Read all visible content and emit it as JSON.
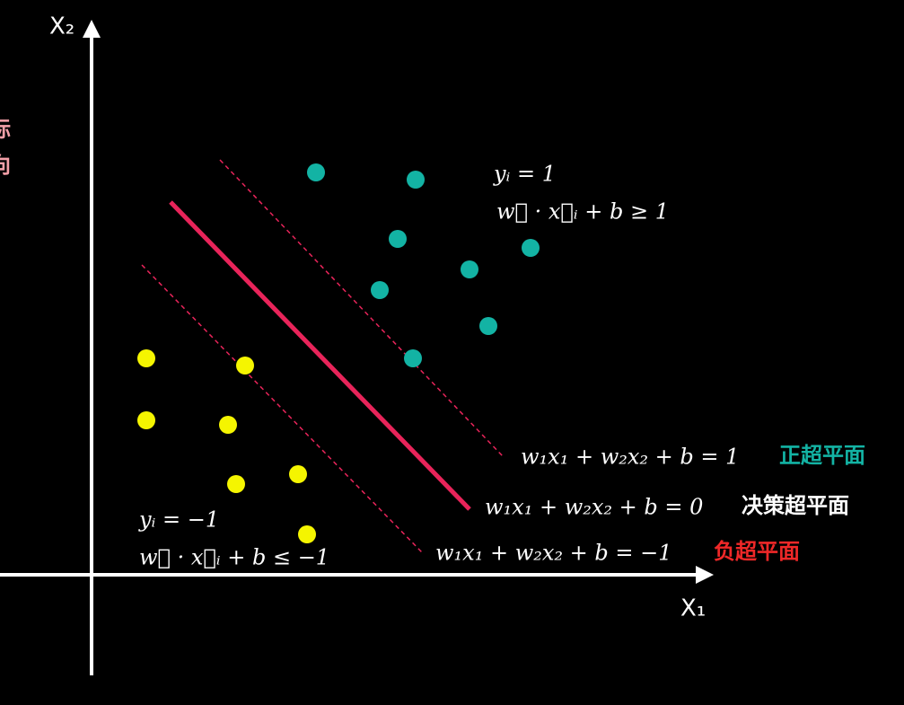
{
  "axes": {
    "y_label": "X₂",
    "x_label": "X₁"
  },
  "side_text": [
    "标",
    "向"
  ],
  "positive_region": {
    "label": "yᵢ = 1",
    "condition": "w⃗ · x⃗ᵢ + b ≥ 1"
  },
  "negative_region": {
    "label": "yᵢ = −1",
    "condition": "w⃗ · x⃗ᵢ + b ≤ −1"
  },
  "hyperplanes": [
    {
      "equation": "w₁x₁ + w₂x₂ + b = 1",
      "name": "正超平面"
    },
    {
      "equation": "w₁x₁ + w₂x₂ + b = 0",
      "name": "决策超平面"
    },
    {
      "equation": "w₁x₁ + w₂x₂ + b = −1",
      "name": "负超平面"
    }
  ]
}
